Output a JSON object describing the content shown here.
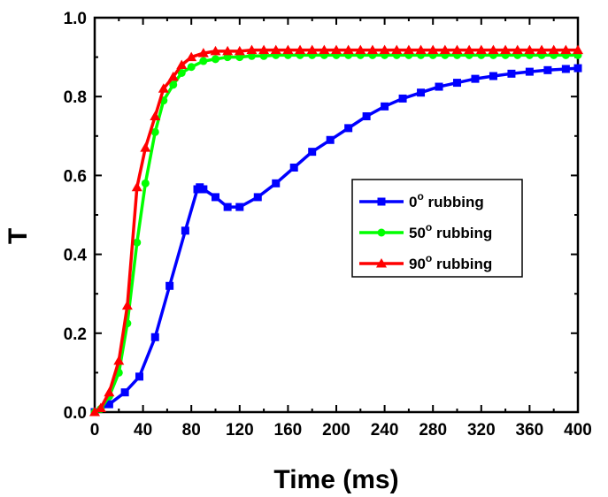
{
  "chart_data": {
    "type": "line",
    "title": "",
    "xlabel": "Time (ms)",
    "ylabel": "T",
    "xlim": [
      0,
      400
    ],
    "ylim": [
      0.0,
      1.0
    ],
    "xticks": [
      0,
      40,
      80,
      120,
      160,
      200,
      240,
      280,
      320,
      360,
      400
    ],
    "xtick_labels": [
      "0",
      "40",
      "80",
      "120",
      "160",
      "200",
      "240",
      "280",
      "320",
      "360",
      "400"
    ],
    "yticks": [
      0.0,
      0.2,
      0.4,
      0.6,
      0.8,
      1.0
    ],
    "ytick_labels": [
      "0.0",
      "0.2",
      "0.4",
      "0.6",
      "0.8",
      "1.0"
    ],
    "grid": false,
    "legend_position": "center-right",
    "series": [
      {
        "name": "0° rubbing",
        "label_num": "0",
        "label_deg": "o",
        "label_text": " rubbing",
        "color": "#0000ff",
        "marker": "square",
        "x": [
          0,
          12,
          25,
          37,
          50,
          62,
          75,
          85,
          87,
          90,
          100,
          110,
          120,
          135,
          150,
          165,
          180,
          195,
          210,
          225,
          240,
          255,
          270,
          285,
          300,
          315,
          330,
          345,
          360,
          375,
          390,
          400
        ],
        "y": [
          0.0,
          0.02,
          0.05,
          0.09,
          0.19,
          0.32,
          0.46,
          0.565,
          0.57,
          0.565,
          0.545,
          0.52,
          0.52,
          0.545,
          0.58,
          0.62,
          0.66,
          0.69,
          0.72,
          0.75,
          0.775,
          0.795,
          0.81,
          0.825,
          0.835,
          0.845,
          0.852,
          0.858,
          0.863,
          0.867,
          0.87,
          0.872
        ]
      },
      {
        "name": "50° rubbing",
        "label_num": "50",
        "label_deg": "o",
        "label_text": " rubbing",
        "color": "#00ff00",
        "marker": "circle",
        "x": [
          0,
          5,
          12,
          20,
          27,
          35,
          42,
          50,
          57,
          65,
          72,
          80,
          90,
          100,
          110,
          120,
          130,
          140,
          150,
          160,
          170,
          180,
          190,
          200,
          210,
          220,
          230,
          240,
          250,
          260,
          270,
          280,
          290,
          300,
          310,
          320,
          330,
          340,
          350,
          360,
          370,
          380,
          390,
          400
        ],
        "y": [
          0.0,
          0.008,
          0.04,
          0.1,
          0.225,
          0.43,
          0.58,
          0.71,
          0.79,
          0.83,
          0.86,
          0.875,
          0.89,
          0.895,
          0.9,
          0.9,
          0.903,
          0.903,
          0.905,
          0.905,
          0.905,
          0.905,
          0.905,
          0.905,
          0.905,
          0.905,
          0.905,
          0.905,
          0.905,
          0.905,
          0.905,
          0.905,
          0.905,
          0.905,
          0.905,
          0.905,
          0.905,
          0.905,
          0.905,
          0.905,
          0.905,
          0.905,
          0.905,
          0.905
        ]
      },
      {
        "name": "90° rubbing",
        "label_num": "90",
        "label_deg": "o",
        "label_text": " rubbing",
        "color": "#ff0000",
        "marker": "triangle",
        "x": [
          0,
          5,
          12,
          20,
          27,
          35,
          42,
          50,
          57,
          65,
          72,
          80,
          90,
          100,
          110,
          120,
          130,
          140,
          150,
          160,
          170,
          180,
          190,
          200,
          210,
          220,
          230,
          240,
          250,
          260,
          270,
          280,
          290,
          300,
          310,
          320,
          330,
          340,
          350,
          360,
          370,
          380,
          390,
          400
        ],
        "y": [
          0.0,
          0.01,
          0.05,
          0.13,
          0.27,
          0.57,
          0.67,
          0.75,
          0.82,
          0.85,
          0.88,
          0.9,
          0.91,
          0.915,
          0.915,
          0.915,
          0.918,
          0.918,
          0.918,
          0.918,
          0.918,
          0.918,
          0.918,
          0.918,
          0.918,
          0.918,
          0.918,
          0.918,
          0.918,
          0.918,
          0.918,
          0.918,
          0.918,
          0.918,
          0.918,
          0.918,
          0.918,
          0.918,
          0.918,
          0.918,
          0.918,
          0.918,
          0.918,
          0.918
        ]
      }
    ]
  }
}
